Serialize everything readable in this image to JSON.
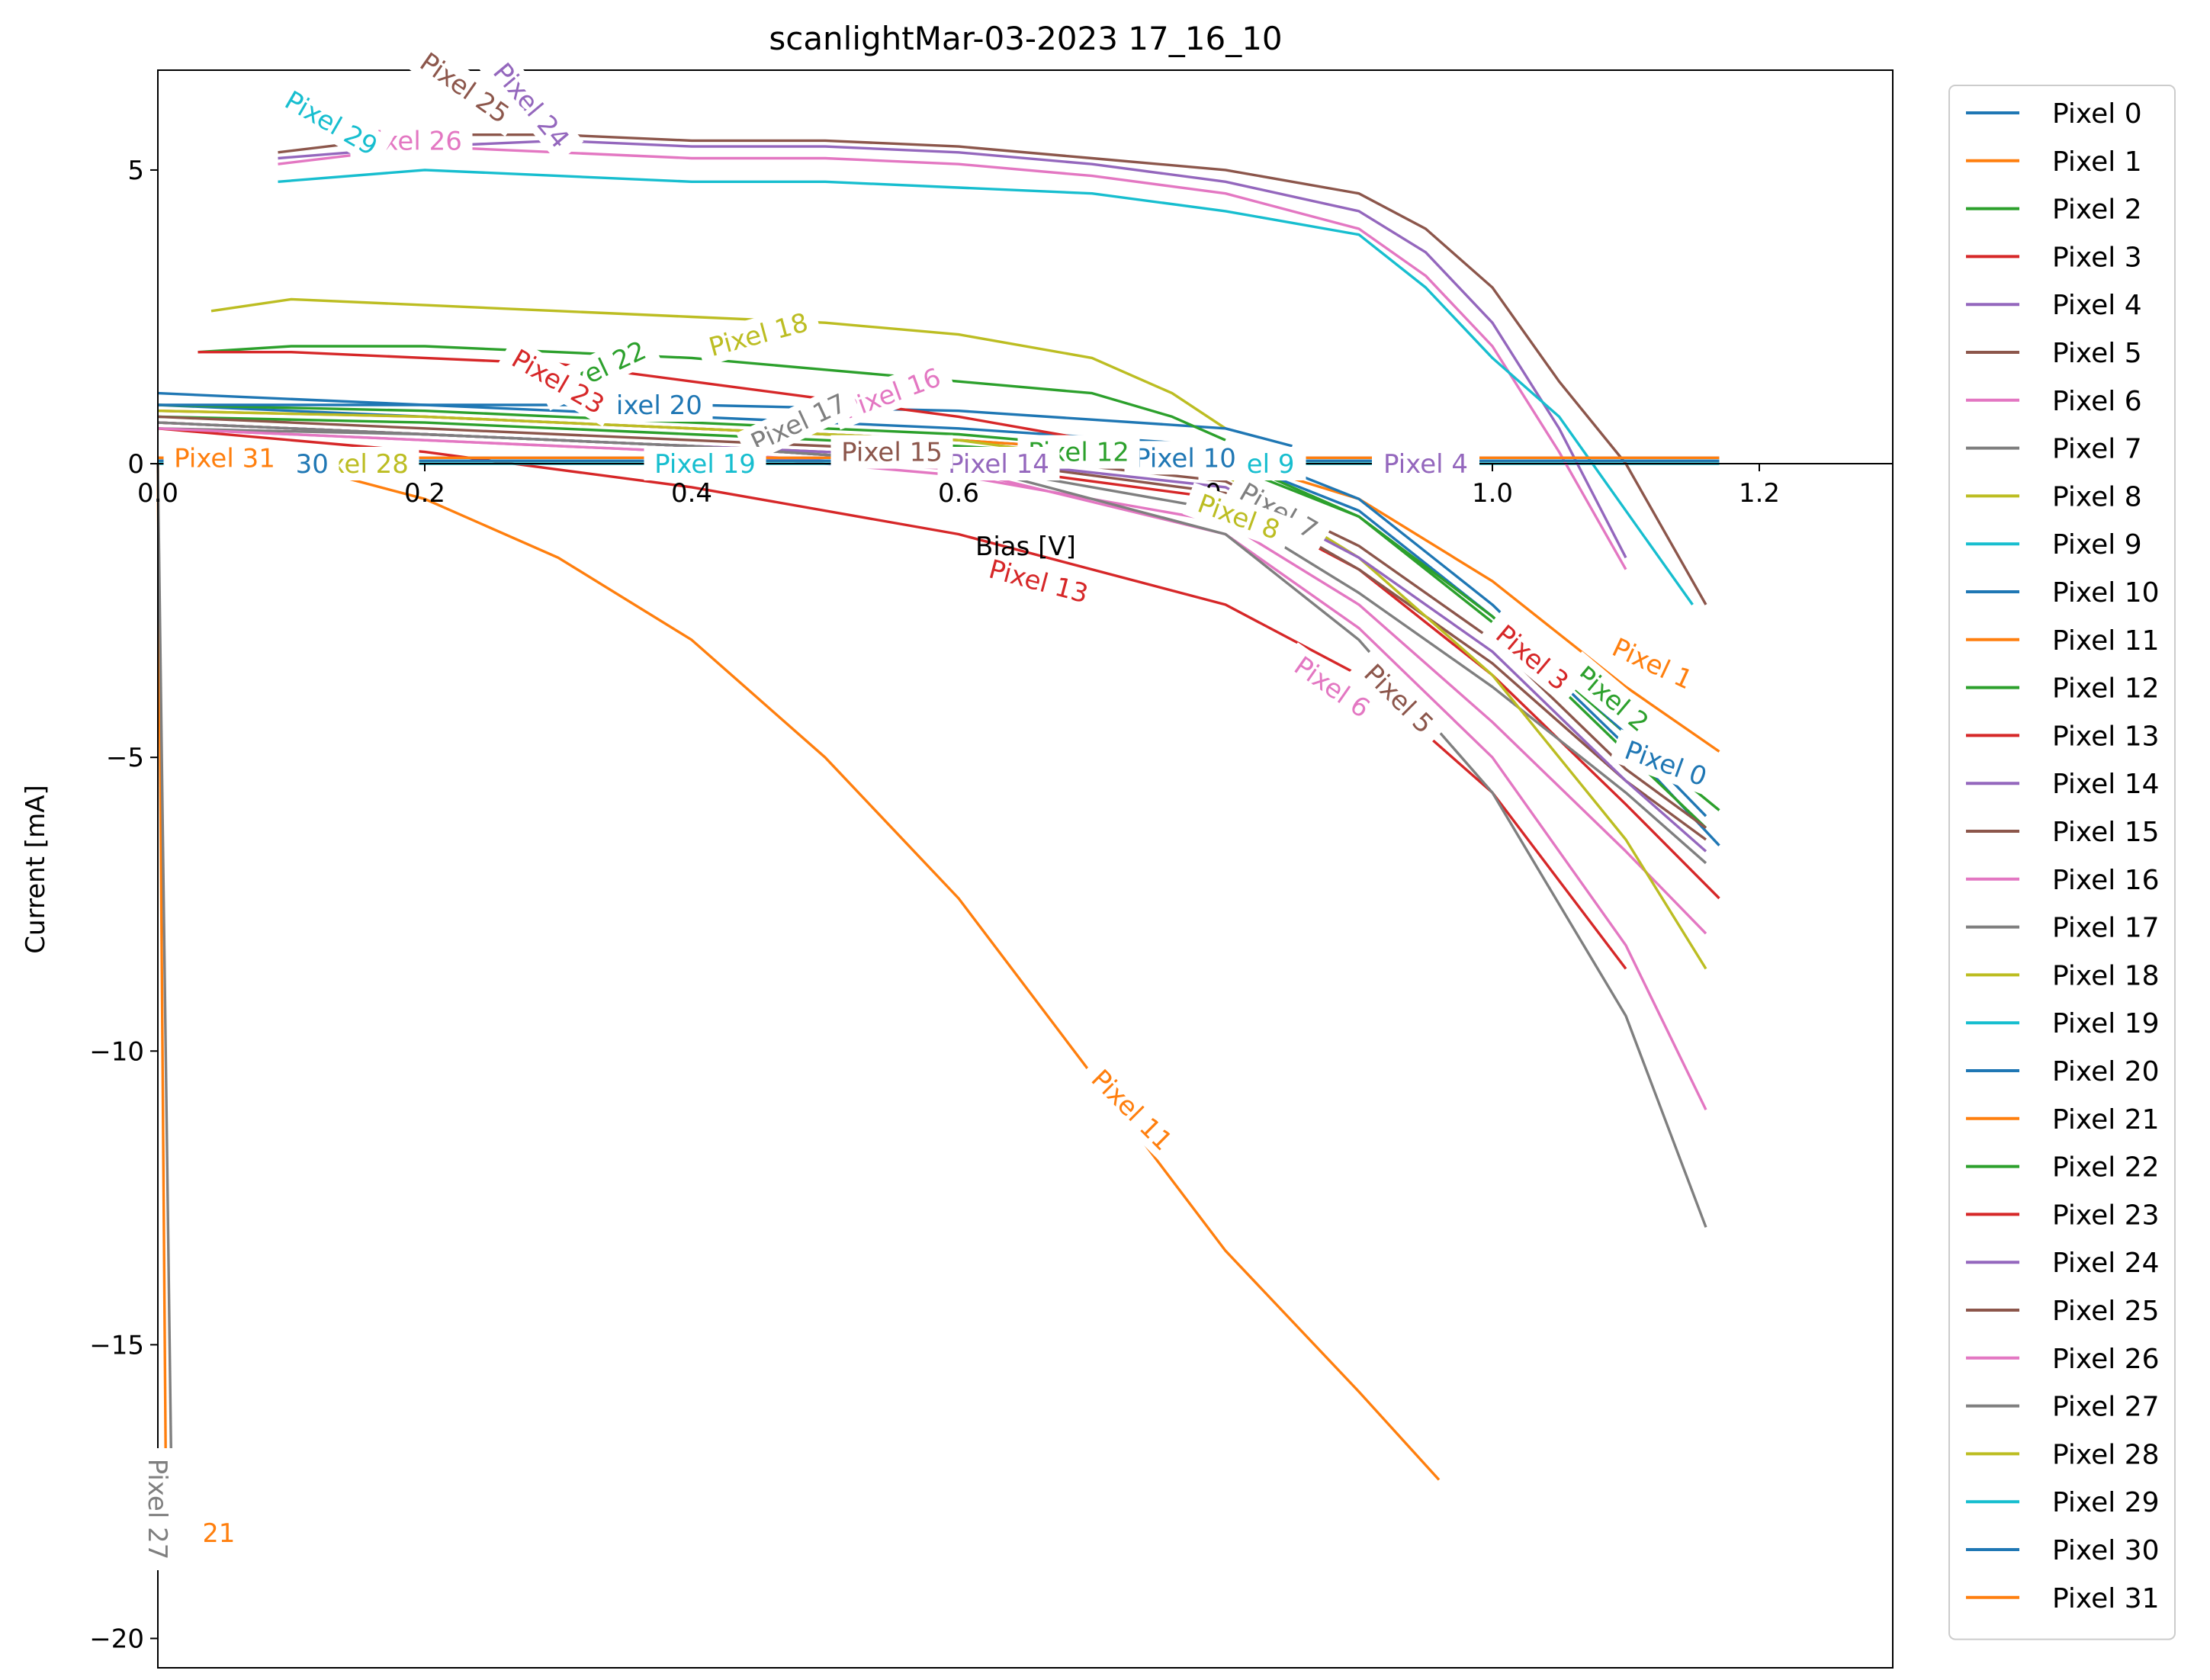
{
  "chart_data": {
    "type": "line",
    "title": "scanlightMar-03-2023 17_16_10",
    "xlabel": "Bias [V]",
    "ylabel": "Current [mA]",
    "xlim": [
      0.0,
      1.3
    ],
    "ylim": [
      -20.5,
      6.7
    ],
    "xticks": [
      "0.0",
      "0.2",
      "0.4",
      "0.6",
      "0.8",
      "1.0",
      "1.2"
    ],
    "yticks": [
      "5",
      "0",
      "−5",
      "−10",
      "−15",
      "−20"
    ],
    "grid": false,
    "legend_position": "outside-right",
    "series": [
      {
        "name": "Pixel 0",
        "color": "#1f77b4",
        "x": [
          0.0,
          0.2,
          0.4,
          0.6,
          0.8,
          0.9,
          1.0,
          1.1,
          1.17
        ],
        "y": [
          1.0,
          0.8,
          0.6,
          0.4,
          0.1,
          -0.8,
          -2.6,
          -4.8,
          -6.5
        ]
      },
      {
        "name": "Pixel 1",
        "color": "#ff7f0e",
        "x": [
          0.0,
          0.2,
          0.4,
          0.6,
          0.8,
          0.9,
          1.0,
          1.1,
          1.17
        ],
        "y": [
          0.9,
          0.8,
          0.6,
          0.4,
          0.1,
          -0.6,
          -2.0,
          -3.8,
          -4.9
        ]
      },
      {
        "name": "Pixel 2",
        "color": "#2ca02c",
        "x": [
          0.0,
          0.2,
          0.4,
          0.6,
          0.8,
          0.9,
          1.0,
          1.1,
          1.17
        ],
        "y": [
          0.8,
          0.7,
          0.5,
          0.3,
          0.0,
          -0.9,
          -2.6,
          -4.6,
          -5.9
        ]
      },
      {
        "name": "Pixel 3",
        "color": "#d62728",
        "x": [
          0.0,
          0.2,
          0.4,
          0.6,
          0.8,
          0.9,
          1.0,
          1.1,
          1.17
        ],
        "y": [
          0.7,
          0.5,
          0.3,
          0.0,
          -0.6,
          -1.8,
          -3.6,
          -5.8,
          -7.4
        ]
      },
      {
        "name": "Pixel 4",
        "color": "#9467bd",
        "x": [
          0.0,
          0.2,
          0.4,
          0.6,
          0.8,
          1.0,
          1.17
        ],
        "y": [
          0.1,
          0.1,
          0.1,
          0.1,
          0.1,
          0.1,
          0.1
        ]
      },
      {
        "name": "Pixel 5",
        "color": "#8c564b",
        "x": [
          0.0,
          0.2,
          0.4,
          0.6,
          0.8,
          0.9,
          1.0,
          1.1,
          1.16
        ],
        "y": [
          0.7,
          0.5,
          0.3,
          0.1,
          -0.5,
          -1.8,
          -3.4,
          -5.4,
          -6.4
        ]
      },
      {
        "name": "Pixel 6",
        "color": "#e377c2",
        "x": [
          0.0,
          0.2,
          0.4,
          0.6,
          0.8,
          0.9,
          1.0,
          1.1,
          1.16
        ],
        "y": [
          0.6,
          0.4,
          0.2,
          -0.2,
          -1.0,
          -2.4,
          -4.4,
          -6.6,
          -8.0
        ]
      },
      {
        "name": "Pixel 7",
        "color": "#7f7f7f",
        "x": [
          0.0,
          0.2,
          0.4,
          0.6,
          0.8,
          0.9,
          1.0,
          1.1,
          1.16
        ],
        "y": [
          0.6,
          0.5,
          0.3,
          0.0,
          -0.8,
          -2.2,
          -3.8,
          -5.6,
          -6.8
        ]
      },
      {
        "name": "Pixel 8",
        "color": "#bcbd22",
        "x": [
          0.0,
          0.2,
          0.4,
          0.6,
          0.8,
          0.9,
          1.0,
          1.1,
          1.16
        ],
        "y": [
          0.9,
          0.8,
          0.6,
          0.4,
          -0.2,
          -1.6,
          -3.6,
          -6.4,
          -8.6
        ]
      },
      {
        "name": "Pixel 9",
        "color": "#17becf",
        "x": [
          0.0,
          0.2,
          0.4,
          0.6,
          0.8,
          1.0,
          1.17
        ],
        "y": [
          0.05,
          0.05,
          0.05,
          0.05,
          0.05,
          0.05,
          0.05
        ]
      },
      {
        "name": "Pixel 10",
        "color": "#1f77b4",
        "x": [
          0.0,
          0.2,
          0.4,
          0.6,
          0.8,
          0.9,
          1.0,
          1.1,
          1.16
        ],
        "y": [
          1.2,
          1.0,
          0.8,
          0.6,
          0.3,
          -0.6,
          -2.4,
          -4.6,
          -6.0
        ]
      },
      {
        "name": "Pixel 11",
        "color": "#ff7f0e",
        "x": [
          0.0,
          0.1,
          0.2,
          0.3,
          0.4,
          0.5,
          0.6,
          0.7,
          0.8,
          0.9,
          0.96
        ],
        "y": [
          0.1,
          0.0,
          -0.6,
          -1.6,
          -3.0,
          -5.0,
          -7.4,
          -10.4,
          -13.4,
          -15.8,
          -17.3
        ]
      },
      {
        "name": "Pixel 12",
        "color": "#2ca02c",
        "x": [
          0.0,
          0.2,
          0.4,
          0.6,
          0.8,
          0.9,
          1.0,
          1.1,
          1.16
        ],
        "y": [
          1.0,
          0.9,
          0.7,
          0.5,
          0.1,
          -0.9,
          -2.7,
          -4.9,
          -6.2
        ]
      },
      {
        "name": "Pixel 13",
        "color": "#d62728",
        "x": [
          0.0,
          0.2,
          0.4,
          0.6,
          0.8,
          0.9,
          1.0,
          1.1
        ],
        "y": [
          0.6,
          0.2,
          -0.4,
          -1.2,
          -2.4,
          -3.6,
          -5.6,
          -8.6
        ]
      },
      {
        "name": "Pixel 14",
        "color": "#9467bd",
        "x": [
          0.0,
          0.2,
          0.4,
          0.6,
          0.8,
          0.9,
          1.0,
          1.1,
          1.16
        ],
        "y": [
          0.7,
          0.5,
          0.3,
          0.1,
          -0.4,
          -1.6,
          -3.2,
          -5.4,
          -6.6
        ]
      },
      {
        "name": "Pixel 15",
        "color": "#8c564b",
        "x": [
          0.0,
          0.2,
          0.4,
          0.6,
          0.8,
          0.9,
          1.0,
          1.1,
          1.16
        ],
        "y": [
          0.8,
          0.6,
          0.4,
          0.2,
          -0.3,
          -1.4,
          -3.0,
          -5.2,
          -6.2
        ]
      },
      {
        "name": "Pixel 16",
        "color": "#e377c2",
        "x": [
          0.0,
          0.2,
          0.4,
          0.6,
          0.8,
          0.9,
          1.0,
          1.1,
          1.16
        ],
        "y": [
          0.6,
          0.4,
          0.2,
          -0.1,
          -1.2,
          -2.8,
          -5.0,
          -8.2,
          -11.0
        ]
      },
      {
        "name": "Pixel 17",
        "color": "#7f7f7f",
        "x": [
          0.0,
          0.2,
          0.4,
          0.6,
          0.8,
          0.9,
          1.0,
          1.1,
          1.16
        ],
        "y": [
          0.7,
          0.5,
          0.3,
          0.0,
          -1.2,
          -3.0,
          -5.6,
          -9.4,
          -13.0
        ]
      },
      {
        "name": "Pixel 18",
        "color": "#bcbd22",
        "x": [
          0.04,
          0.1,
          0.2,
          0.3,
          0.4,
          0.5,
          0.6,
          0.7,
          0.76,
          0.8
        ],
        "y": [
          2.6,
          2.8,
          2.7,
          2.6,
          2.5,
          2.4,
          2.2,
          1.8,
          1.2,
          0.6
        ]
      },
      {
        "name": "Pixel 19",
        "color": "#17becf",
        "x": [
          0.0,
          0.2,
          0.4,
          0.6,
          0.8,
          1.0,
          1.17
        ],
        "y": [
          0.0,
          0.0,
          0.0,
          0.0,
          0.0,
          0.0,
          0.0
        ]
      },
      {
        "name": "Pixel 20",
        "color": "#1f77b4",
        "x": [
          0.0,
          0.2,
          0.4,
          0.6,
          0.8,
          0.85
        ],
        "y": [
          1.0,
          1.0,
          1.0,
          0.9,
          0.6,
          0.3
        ]
      },
      {
        "name": "Pixel 21",
        "color": "#ff7f0e",
        "x": [
          0.0,
          0.006
        ],
        "y": [
          0.0,
          -17.3
        ]
      },
      {
        "name": "Pixel 22",
        "color": "#2ca02c",
        "x": [
          0.03,
          0.1,
          0.2,
          0.3,
          0.4,
          0.5,
          0.6,
          0.7,
          0.76,
          0.8
        ],
        "y": [
          1.9,
          2.0,
          2.0,
          1.9,
          1.8,
          1.6,
          1.4,
          1.2,
          0.8,
          0.4
        ]
      },
      {
        "name": "Pixel 23",
        "color": "#d62728",
        "x": [
          0.03,
          0.1,
          0.2,
          0.3,
          0.4,
          0.5,
          0.6,
          0.7,
          0.8
        ],
        "y": [
          1.9,
          1.9,
          1.8,
          1.7,
          1.4,
          1.1,
          0.8,
          0.4,
          0.0
        ]
      },
      {
        "name": "Pixel 24",
        "color": "#9467bd",
        "x": [
          0.09,
          0.2,
          0.3,
          0.4,
          0.5,
          0.6,
          0.7,
          0.8,
          0.9,
          0.95,
          1.0,
          1.05,
          1.1
        ],
        "y": [
          5.2,
          5.4,
          5.5,
          5.4,
          5.4,
          5.3,
          5.1,
          4.8,
          4.3,
          3.6,
          2.4,
          0.6,
          -1.6
        ]
      },
      {
        "name": "Pixel 25",
        "color": "#8c564b",
        "x": [
          0.09,
          0.2,
          0.3,
          0.4,
          0.5,
          0.6,
          0.7,
          0.8,
          0.9,
          0.95,
          1.0,
          1.05,
          1.1,
          1.16
        ],
        "y": [
          5.3,
          5.6,
          5.6,
          5.5,
          5.5,
          5.4,
          5.2,
          5.0,
          4.6,
          4.0,
          3.0,
          1.4,
          0.0,
          -2.4
        ]
      },
      {
        "name": "Pixel 26",
        "color": "#e377c2",
        "x": [
          0.09,
          0.2,
          0.3,
          0.4,
          0.5,
          0.6,
          0.7,
          0.8,
          0.9,
          0.95,
          1.0,
          1.05,
          1.1
        ],
        "y": [
          5.1,
          5.4,
          5.3,
          5.2,
          5.2,
          5.1,
          4.9,
          4.6,
          4.0,
          3.2,
          2.0,
          0.2,
          -1.8
        ]
      },
      {
        "name": "Pixel 27",
        "color": "#7f7f7f",
        "x": [
          0.0,
          0.01
        ],
        "y": [
          0.0,
          -17.0
        ]
      },
      {
        "name": "Pixel 28",
        "color": "#bcbd22",
        "x": [
          0.0,
          0.2,
          0.4,
          0.6,
          0.8,
          1.0,
          1.17
        ],
        "y": [
          0.05,
          0.05,
          0.05,
          0.05,
          0.05,
          0.05,
          0.05
        ]
      },
      {
        "name": "Pixel 29",
        "color": "#17becf",
        "x": [
          0.09,
          0.2,
          0.3,
          0.4,
          0.5,
          0.6,
          0.7,
          0.8,
          0.9,
          0.95,
          1.0,
          1.05,
          1.1,
          1.15
        ],
        "y": [
          4.8,
          5.0,
          4.9,
          4.8,
          4.8,
          4.7,
          4.6,
          4.3,
          3.9,
          3.0,
          1.8,
          0.8,
          -0.8,
          -2.4
        ]
      },
      {
        "name": "Pixel 30",
        "color": "#1f77b4",
        "x": [
          0.0,
          0.2,
          0.4,
          0.6,
          0.8,
          1.0,
          1.17
        ],
        "y": [
          0.05,
          0.05,
          0.05,
          0.05,
          0.05,
          0.05,
          0.05
        ]
      },
      {
        "name": "Pixel 31",
        "color": "#ff7f0e",
        "x": [
          0.0,
          0.2,
          0.4,
          0.6,
          0.8,
          1.0,
          1.17
        ],
        "y": [
          0.1,
          0.1,
          0.1,
          0.1,
          0.1,
          0.1,
          0.1
        ]
      }
    ],
    "inline_labels": [
      {
        "text": "Pixel 0",
        "color": "#1f77b4",
        "x": 1.13,
        "y": -5.1,
        "rot": 20
      },
      {
        "text": "Pixel 1",
        "color": "#ff7f0e",
        "x": 1.12,
        "y": -3.4,
        "rot": 25
      },
      {
        "text": "Pixel 2",
        "color": "#2ca02c",
        "x": 1.09,
        "y": -4.0,
        "rot": 40
      },
      {
        "text": "Pixel 3",
        "color": "#d62728",
        "x": 1.03,
        "y": -3.3,
        "rot": 40
      },
      {
        "text": "Pixel 4",
        "color": "#9467bd",
        "x": 0.95,
        "y": 0.0,
        "rot": 0
      },
      {
        "text": "Pixel 5",
        "color": "#8c564b",
        "x": 0.93,
        "y": -4.0,
        "rot": 45
      },
      {
        "text": "Pixel 6",
        "color": "#e377c2",
        "x": 0.88,
        "y": -3.8,
        "rot": 35
      },
      {
        "text": "Pixel 7",
        "color": "#7f7f7f",
        "x": 0.84,
        "y": -0.8,
        "rot": 30
      },
      {
        "text": "Pixel 8",
        "color": "#bcbd22",
        "x": 0.81,
        "y": -0.9,
        "rot": 20
      },
      {
        "text": "Pixel 9",
        "color": "#17becf",
        "x": 0.82,
        "y": 0.0,
        "rot": 0
      },
      {
        "text": "Pixel 10",
        "color": "#1f77b4",
        "x": 0.77,
        "y": 0.1,
        "rot": 0
      },
      {
        "text": "Pixel 11",
        "color": "#ff7f0e",
        "x": 0.73,
        "y": -11.0,
        "rot": 45
      },
      {
        "text": "Pixel 12",
        "color": "#2ca02c",
        "x": 0.69,
        "y": 0.2,
        "rot": 0
      },
      {
        "text": "Pixel 13",
        "color": "#d62728",
        "x": 0.66,
        "y": -2.0,
        "rot": 15
      },
      {
        "text": "Pixel 14",
        "color": "#9467bd",
        "x": 0.63,
        "y": 0.0,
        "rot": 0
      },
      {
        "text": "Pixel 15",
        "color": "#8c564b",
        "x": 0.55,
        "y": 0.2,
        "rot": 0
      },
      {
        "text": "Pixel 16",
        "color": "#e377c2",
        "x": 0.55,
        "y": 1.2,
        "rot": -20
      },
      {
        "text": "Pixel 17",
        "color": "#7f7f7f",
        "x": 0.48,
        "y": 0.7,
        "rot": -25
      },
      {
        "text": "Pixel 18",
        "color": "#bcbd22",
        "x": 0.45,
        "y": 2.2,
        "rot": -15
      },
      {
        "text": "Pixel 19",
        "color": "#17becf",
        "x": 0.41,
        "y": 0.0,
        "rot": 0
      },
      {
        "text": "Pixel 20",
        "color": "#1f77b4",
        "x": 0.37,
        "y": 1.0,
        "rot": 0
      },
      {
        "text": "Pixel 21",
        "color": "#ff7f0e",
        "x": 0.02,
        "y": -18.2,
        "rot": 0,
        "clip": 54
      },
      {
        "text": "Pixel 22",
        "color": "#2ca02c",
        "x": 0.33,
        "y": 1.6,
        "rot": -25
      },
      {
        "text": "Pixel 23",
        "color": "#d62728",
        "x": 0.3,
        "y": 1.4,
        "rot": 30
      },
      {
        "text": "Pixel 24",
        "color": "#9467bd",
        "x": 0.28,
        "y": 6.1,
        "rot": 50
      },
      {
        "text": "Pixel 25",
        "color": "#8c564b",
        "x": 0.23,
        "y": 6.4,
        "rot": 35
      },
      {
        "text": "Pixel 26",
        "color": "#e377c2",
        "x": 0.19,
        "y": 5.5,
        "rot": 0
      },
      {
        "text": "Pixel 27",
        "color": "#7f7f7f",
        "x": 0.0,
        "y": -17.8,
        "rot": 90
      },
      {
        "text": "Pixel 28",
        "color": "#bcbd22",
        "x": 0.15,
        "y": 0.0,
        "rot": 0
      },
      {
        "text": "Pixel 29",
        "color": "#17becf",
        "x": 0.13,
        "y": 5.8,
        "rot": 30
      },
      {
        "text": "Pixel 30",
        "color": "#1f77b4",
        "x": 0.09,
        "y": 0.0,
        "rot": 0
      },
      {
        "text": "Pixel 31",
        "color": "#ff7f0e",
        "x": 0.05,
        "y": 0.1,
        "rot": 0
      }
    ]
  }
}
